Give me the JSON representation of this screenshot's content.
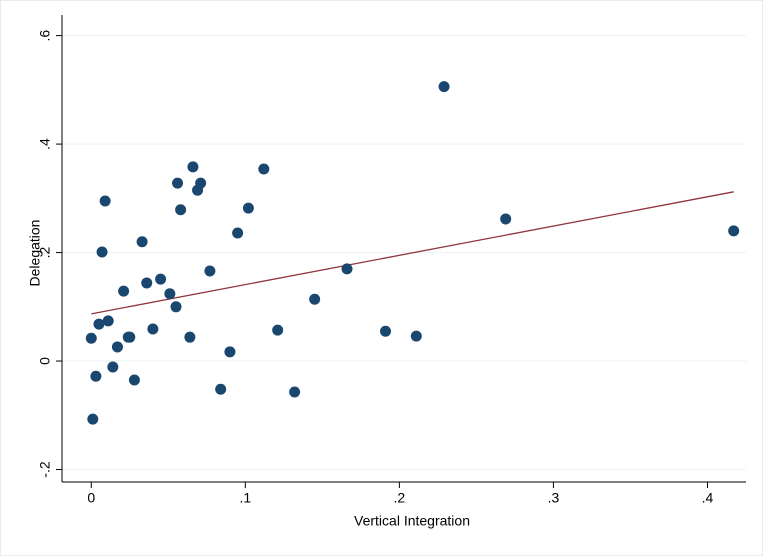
{
  "chart_data": {
    "type": "scatter",
    "x_label": "Vertical Integration",
    "y_label": "Delegation",
    "xlim": [
      -0.019,
      0.425
    ],
    "ylim": [
      -0.223,
      0.638
    ],
    "xticks": [
      0,
      {
        "value": 0.1,
        "label": ".1"
      },
      {
        "value": 0.2,
        "label": ".2"
      },
      {
        "value": 0.3,
        "label": ".3"
      },
      {
        "value": 0.4,
        "label": ".4"
      }
    ],
    "yticks": [
      {
        "value": -0.2,
        "label": "-.2"
      },
      0,
      {
        "value": 0.2,
        "label": ".2"
      },
      {
        "value": 0.4,
        "label": ".4"
      },
      {
        "value": 0.6,
        "label": ".6"
      }
    ],
    "grid": true,
    "points": {
      "color": "#1a476f",
      "x": [
        0.0,
        0.001,
        0.003,
        0.005,
        0.007,
        0.009,
        0.011,
        0.014,
        0.017,
        0.021,
        0.024,
        0.025,
        0.028,
        0.033,
        0.036,
        0.04,
        0.045,
        0.051,
        0.055,
        0.056,
        0.058,
        0.064,
        0.066,
        0.069,
        0.071,
        0.077,
        0.084,
        0.09,
        0.095,
        0.102,
        0.112,
        0.121,
        0.132,
        0.145,
        0.166,
        0.191,
        0.211,
        0.229,
        0.269,
        0.417
      ],
      "y": [
        0.042,
        -0.107,
        -0.028,
        0.068,
        0.201,
        0.295,
        0.074,
        -0.011,
        0.026,
        0.129,
        0.044,
        0.044,
        -0.035,
        0.22,
        0.144,
        0.059,
        0.151,
        0.124,
        0.1,
        0.328,
        0.279,
        0.044,
        0.358,
        0.315,
        0.328,
        0.166,
        -0.052,
        0.017,
        0.236,
        0.282,
        0.354,
        0.057,
        -0.057,
        0.114,
        0.17,
        0.055,
        0.046,
        0.506,
        0.262,
        0.24
      ]
    },
    "fit_line": {
      "color": "#90353b",
      "x": [
        0,
        0.417
      ],
      "y": [
        0.087,
        0.312
      ]
    }
  }
}
